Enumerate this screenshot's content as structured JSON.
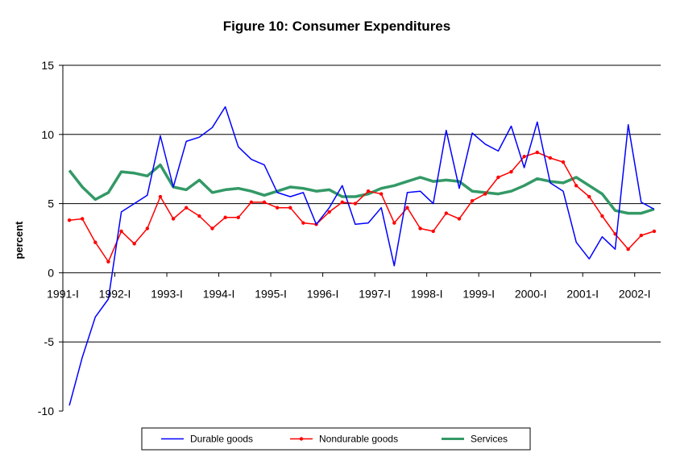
{
  "chart_data": {
    "type": "line",
    "title": "Figure 10: Consumer Expenditures",
    "ylabel": "percent",
    "xlabel": "",
    "ylim": [
      -10,
      15
    ],
    "yticks": [
      15,
      10,
      5,
      0,
      -5,
      -10
    ],
    "grid": true,
    "legend_position": "bottom",
    "x_tick_labels": [
      "1991-I",
      "1992-I",
      "1993-I",
      "1994-I",
      "1995-I",
      "1996-I",
      "1997-I",
      "1998-I",
      "1999-I",
      "2000-I",
      "2001-I",
      "2002-I"
    ],
    "x": [
      "1991-I",
      "1991-II",
      "1991-III",
      "1991-IV",
      "1992-I",
      "1992-II",
      "1992-III",
      "1992-IV",
      "1993-I",
      "1993-II",
      "1993-III",
      "1993-IV",
      "1994-I",
      "1994-II",
      "1994-III",
      "1994-IV",
      "1995-I",
      "1995-II",
      "1995-III",
      "1995-IV",
      "1996-I",
      "1996-II",
      "1996-III",
      "1996-IV",
      "1997-I",
      "1997-II",
      "1997-III",
      "1997-IV",
      "1998-I",
      "1998-II",
      "1998-III",
      "1998-IV",
      "1999-I",
      "1999-II",
      "1999-III",
      "1999-IV",
      "2000-I",
      "2000-II",
      "2000-III",
      "2000-IV",
      "2001-I",
      "2001-II",
      "2001-III",
      "2001-IV",
      "2002-I",
      "2002-II"
    ],
    "series": [
      {
        "name": "Durable goods",
        "color": "#0000ff",
        "marker": "none",
        "line_width": 1.5,
        "values": [
          -9.6,
          -6.1,
          -3.2,
          -1.9,
          4.4,
          5.0,
          5.6,
          9.9,
          6.2,
          9.5,
          9.8,
          10.5,
          12.0,
          9.1,
          8.2,
          7.8,
          5.8,
          5.5,
          5.8,
          3.5,
          4.7,
          6.3,
          3.5,
          3.6,
          4.7,
          0.5,
          5.8,
          5.9,
          5.0,
          10.3,
          6.1,
          10.1,
          9.3,
          8.8,
          10.6,
          7.6,
          10.9,
          6.5,
          5.9,
          2.2,
          1.0,
          2.6,
          1.7,
          10.7,
          5.1,
          4.6
        ]
      },
      {
        "name": "Nondurable goods",
        "color": "#ff0000",
        "marker": "dot",
        "line_width": 1.5,
        "values": [
          3.8,
          3.9,
          2.2,
          0.8,
          3.0,
          2.1,
          3.2,
          5.5,
          3.9,
          4.7,
          4.1,
          3.2,
          4.0,
          4.0,
          5.1,
          5.1,
          4.7,
          4.7,
          3.6,
          3.5,
          4.4,
          5.1,
          5.0,
          5.9,
          5.7,
          3.6,
          4.7,
          3.2,
          3.0,
          4.3,
          3.9,
          5.2,
          5.7,
          6.9,
          7.3,
          8.4,
          8.7,
          8.3,
          8.0,
          6.3,
          5.5,
          4.1,
          2.8,
          1.7,
          2.7,
          3.0
        ]
      },
      {
        "name": "Services",
        "color": "#339966",
        "marker": "none",
        "line_width": 3.5,
        "values": [
          7.4,
          6.2,
          5.3,
          5.8,
          7.3,
          7.2,
          7.0,
          7.8,
          6.2,
          6.0,
          6.7,
          5.8,
          6.0,
          6.1,
          5.9,
          5.6,
          5.9,
          6.2,
          6.1,
          5.9,
          6.0,
          5.5,
          5.5,
          5.7,
          6.1,
          6.3,
          6.6,
          6.9,
          6.6,
          6.7,
          6.6,
          5.9,
          5.8,
          5.7,
          5.9,
          6.3,
          6.8,
          6.6,
          6.5,
          6.9,
          6.3,
          5.7,
          4.5,
          4.3,
          4.3,
          4.6
        ]
      }
    ]
  }
}
